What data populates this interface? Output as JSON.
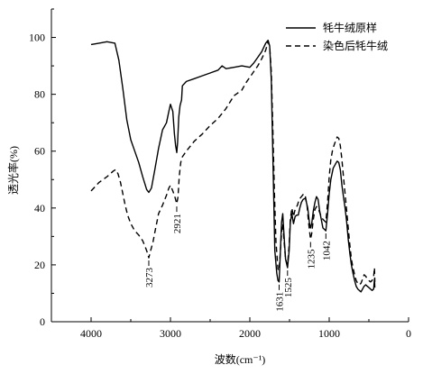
{
  "chart_data": {
    "type": "line",
    "xlabel": "波数(cm⁻¹)",
    "ylabel": "透光率(%)",
    "xlim": [
      4500,
      0
    ],
    "ylim": [
      0,
      110
    ],
    "x_ticks": [
      4000,
      3000,
      2000,
      1000,
      0
    ],
    "y_ticks": [
      0,
      20,
      40,
      60,
      80,
      100
    ],
    "grid": false,
    "legend_position": "top-right",
    "series": [
      {
        "name": "牦牛绒原样",
        "style": "solid",
        "color": "#000000",
        "points": [
          [
            4000,
            97.5
          ],
          [
            3900,
            98.0
          ],
          [
            3800,
            98.5
          ],
          [
            3700,
            98.0
          ],
          [
            3650,
            92
          ],
          [
            3600,
            82
          ],
          [
            3550,
            71
          ],
          [
            3500,
            64
          ],
          [
            3450,
            60
          ],
          [
            3400,
            56
          ],
          [
            3350,
            51
          ],
          [
            3300,
            46.5
          ],
          [
            3273,
            45.5
          ],
          [
            3240,
            47
          ],
          [
            3200,
            53
          ],
          [
            3150,
            61
          ],
          [
            3100,
            67.5
          ],
          [
            3050,
            70
          ],
          [
            3020,
            74
          ],
          [
            3000,
            76.5
          ],
          [
            2970,
            74
          ],
          [
            2950,
            66
          ],
          [
            2935,
            62
          ],
          [
            2921,
            59.5
          ],
          [
            2910,
            63
          ],
          [
            2895,
            72
          ],
          [
            2880,
            76
          ],
          [
            2860,
            78
          ],
          [
            2850,
            83
          ],
          [
            2800,
            84.5
          ],
          [
            2700,
            85.5
          ],
          [
            2600,
            86.5
          ],
          [
            2500,
            87.5
          ],
          [
            2400,
            88.5
          ],
          [
            2350,
            90
          ],
          [
            2300,
            89
          ],
          [
            2200,
            89.5
          ],
          [
            2100,
            90
          ],
          [
            2000,
            89.5
          ],
          [
            1950,
            91
          ],
          [
            1900,
            93
          ],
          [
            1850,
            95
          ],
          [
            1800,
            98
          ],
          [
            1770,
            99
          ],
          [
            1750,
            97
          ],
          [
            1730,
            85
          ],
          [
            1715,
            65
          ],
          [
            1700,
            45
          ],
          [
            1685,
            25
          ],
          [
            1660,
            17
          ],
          [
            1645,
            14.5
          ],
          [
            1631,
            14
          ],
          [
            1615,
            25
          ],
          [
            1600,
            35
          ],
          [
            1585,
            38
          ],
          [
            1570,
            31
          ],
          [
            1550,
            22
          ],
          [
            1525,
            19
          ],
          [
            1505,
            25
          ],
          [
            1490,
            35
          ],
          [
            1470,
            38
          ],
          [
            1450,
            34.5
          ],
          [
            1430,
            37
          ],
          [
            1410,
            37.5
          ],
          [
            1390,
            37.5
          ],
          [
            1370,
            40
          ],
          [
            1350,
            42
          ],
          [
            1330,
            43
          ],
          [
            1300,
            43.5
          ],
          [
            1270,
            40
          ],
          [
            1250,
            35
          ],
          [
            1235,
            33
          ],
          [
            1220,
            34.5
          ],
          [
            1200,
            39
          ],
          [
            1180,
            42
          ],
          [
            1160,
            44
          ],
          [
            1140,
            43
          ],
          [
            1120,
            39
          ],
          [
            1100,
            36
          ],
          [
            1080,
            33
          ],
          [
            1060,
            32.5
          ],
          [
            1042,
            32
          ],
          [
            1020,
            38
          ],
          [
            1000,
            45
          ],
          [
            980,
            50
          ],
          [
            950,
            54
          ],
          [
            920,
            55.5
          ],
          [
            900,
            56.5
          ],
          [
            880,
            56
          ],
          [
            860,
            53.5
          ],
          [
            840,
            48
          ],
          [
            820,
            44
          ],
          [
            800,
            40
          ],
          [
            780,
            35
          ],
          [
            760,
            29
          ],
          [
            740,
            24
          ],
          [
            720,
            20
          ],
          [
            700,
            17
          ],
          [
            680,
            14.5
          ],
          [
            660,
            12.5
          ],
          [
            640,
            11.5
          ],
          [
            620,
            11
          ],
          [
            600,
            10.5
          ],
          [
            580,
            11.5
          ],
          [
            560,
            12.5
          ],
          [
            540,
            13
          ],
          [
            520,
            12.5
          ],
          [
            500,
            12
          ],
          [
            480,
            11.5
          ],
          [
            460,
            11
          ],
          [
            440,
            11.5
          ],
          [
            430,
            15
          ],
          [
            425,
            12
          ]
        ]
      },
      {
        "name": "染色后牦牛绒",
        "style": "dashed",
        "color": "#000000",
        "points": [
          [
            4000,
            46
          ],
          [
            3950,
            47.5
          ],
          [
            3900,
            49
          ],
          [
            3850,
            50
          ],
          [
            3800,
            51
          ],
          [
            3760,
            52
          ],
          [
            3720,
            53
          ],
          [
            3690,
            53.5
          ],
          [
            3660,
            52
          ],
          [
            3630,
            49
          ],
          [
            3600,
            45
          ],
          [
            3570,
            41
          ],
          [
            3540,
            37.5
          ],
          [
            3500,
            34.5
          ],
          [
            3450,
            32
          ],
          [
            3400,
            30.5
          ],
          [
            3350,
            28.5
          ],
          [
            3320,
            26.5
          ],
          [
            3300,
            25
          ],
          [
            3273,
            22.5
          ],
          [
            3250,
            25
          ],
          [
            3220,
            28
          ],
          [
            3200,
            31
          ],
          [
            3150,
            38
          ],
          [
            3100,
            41
          ],
          [
            3050,
            44.5
          ],
          [
            3020,
            47
          ],
          [
            3000,
            48
          ],
          [
            2970,
            46
          ],
          [
            2950,
            44.5
          ],
          [
            2935,
            43
          ],
          [
            2921,
            41.5
          ],
          [
            2905,
            44
          ],
          [
            2890,
            51
          ],
          [
            2870,
            56
          ],
          [
            2850,
            58
          ],
          [
            2800,
            60
          ],
          [
            2700,
            63.5
          ],
          [
            2600,
            66
          ],
          [
            2500,
            69
          ],
          [
            2400,
            71.5
          ],
          [
            2300,
            75
          ],
          [
            2200,
            79.5
          ],
          [
            2100,
            81.5
          ],
          [
            2050,
            84
          ],
          [
            2000,
            86
          ],
          [
            1950,
            88
          ],
          [
            1900,
            90
          ],
          [
            1850,
            92.5
          ],
          [
            1800,
            95.5
          ],
          [
            1770,
            98.5
          ],
          [
            1750,
            97
          ],
          [
            1730,
            88
          ],
          [
            1710,
            68
          ],
          [
            1690,
            45
          ],
          [
            1670,
            28
          ],
          [
            1645,
            18.5
          ],
          [
            1631,
            18
          ],
          [
            1610,
            27
          ],
          [
            1595,
            33
          ],
          [
            1585,
            34.5
          ],
          [
            1570,
            29
          ],
          [
            1550,
            22
          ],
          [
            1525,
            20
          ],
          [
            1505,
            27
          ],
          [
            1490,
            36
          ],
          [
            1470,
            40
          ],
          [
            1450,
            37
          ],
          [
            1430,
            39.5
          ],
          [
            1400,
            41
          ],
          [
            1380,
            43
          ],
          [
            1350,
            44
          ],
          [
            1320,
            45
          ],
          [
            1300,
            44
          ],
          [
            1280,
            41
          ],
          [
            1260,
            35
          ],
          [
            1240,
            30
          ],
          [
            1235,
            29
          ],
          [
            1220,
            31
          ],
          [
            1200,
            36
          ],
          [
            1180,
            39.5
          ],
          [
            1160,
            40.5
          ],
          [
            1140,
            40
          ],
          [
            1120,
            38.5
          ],
          [
            1100,
            37
          ],
          [
            1080,
            36
          ],
          [
            1060,
            35.5
          ],
          [
            1042,
            35
          ],
          [
            1020,
            42
          ],
          [
            1000,
            51
          ],
          [
            980,
            57
          ],
          [
            960,
            60
          ],
          [
            940,
            62
          ],
          [
            920,
            63.5
          ],
          [
            900,
            65
          ],
          [
            880,
            64.5
          ],
          [
            860,
            62
          ],
          [
            840,
            57
          ],
          [
            820,
            51
          ],
          [
            800,
            45
          ],
          [
            780,
            39
          ],
          [
            760,
            33
          ],
          [
            740,
            27
          ],
          [
            720,
            22
          ],
          [
            700,
            19
          ],
          [
            680,
            16.5
          ],
          [
            660,
            14.5
          ],
          [
            640,
            13.5
          ],
          [
            620,
            13
          ],
          [
            600,
            13.5
          ],
          [
            580,
            15
          ],
          [
            560,
            16.5
          ],
          [
            540,
            16
          ],
          [
            520,
            15
          ],
          [
            500,
            14.5
          ],
          [
            480,
            14
          ],
          [
            460,
            14.5
          ],
          [
            440,
            16
          ],
          [
            430,
            19
          ],
          [
            425,
            14
          ]
        ]
      }
    ],
    "annotations": [
      {
        "text": "3273",
        "x": 3273,
        "y": 22.5
      },
      {
        "text": "2921",
        "x": 2921,
        "y": 41.5
      },
      {
        "text": "1631",
        "x": 1631,
        "y": 14
      },
      {
        "text": "1525",
        "x": 1525,
        "y": 19
      },
      {
        "text": "1235",
        "x": 1235,
        "y": 29
      },
      {
        "text": "1042",
        "x": 1042,
        "y": 32
      }
    ]
  }
}
